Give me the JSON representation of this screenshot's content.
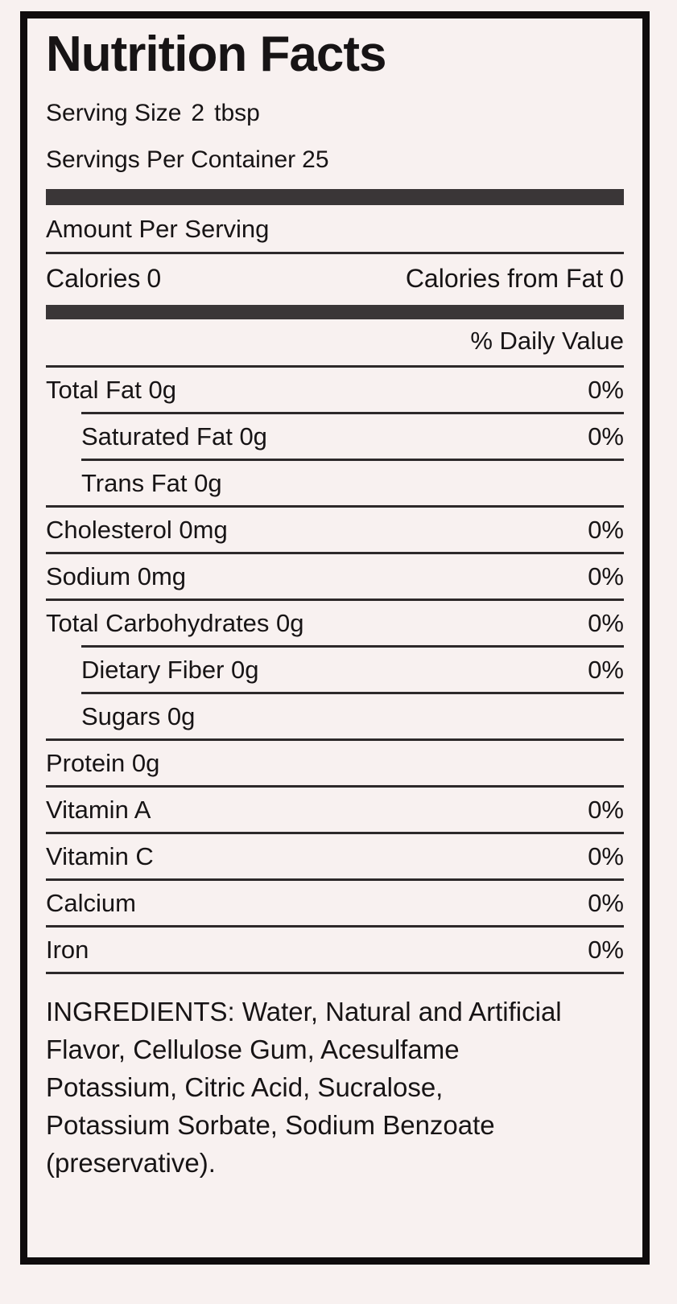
{
  "label": {
    "title": "Nutrition Facts",
    "serving_size_label": "Serving Size",
    "serving_size_value": "2",
    "serving_size_unit": "tbsp",
    "servings_per_container_label": "Servings Per Container",
    "servings_per_container_value": "25",
    "amount_per_serving": "Amount Per Serving",
    "calories_label": "Calories",
    "calories_value": "0",
    "calories_from_fat_label": "Calories from Fat",
    "calories_from_fat_value": "0",
    "daily_value_header": "% Daily Value"
  },
  "nutrients": {
    "rows": [
      {
        "label": "Total Fat",
        "amount": "0g",
        "dv": "0%",
        "indent": false,
        "divider_indent": true
      },
      {
        "label": "Saturated Fat",
        "amount": "0g",
        "dv": "0%",
        "indent": true,
        "divider_indent": true
      },
      {
        "label": "Trans Fat",
        "amount": "0g",
        "dv": "",
        "indent": true,
        "divider_indent": false
      },
      {
        "label": "Cholesterol",
        "amount": "0mg",
        "dv": "0%",
        "indent": false,
        "divider_indent": false
      },
      {
        "label": "Sodium",
        "amount": "0mg",
        "dv": "0%",
        "indent": false,
        "divider_indent": false
      },
      {
        "label": "Total Carbohydrates",
        "amount": "0g",
        "dv": "0%",
        "indent": false,
        "divider_indent": true
      },
      {
        "label": "Dietary Fiber",
        "amount": "0g",
        "dv": "0%",
        "indent": true,
        "divider_indent": true
      },
      {
        "label": "Sugars",
        "amount": "0g",
        "dv": "",
        "indent": true,
        "divider_indent": false
      },
      {
        "label": "Protein",
        "amount": "0g",
        "dv": "",
        "indent": false,
        "divider_indent": false
      },
      {
        "label": "Vitamin A",
        "amount": "",
        "dv": "0%",
        "indent": false,
        "divider_indent": false
      },
      {
        "label": "Vitamin C",
        "amount": "",
        "dv": "0%",
        "indent": false,
        "divider_indent": false
      },
      {
        "label": "Calcium",
        "amount": "",
        "dv": "0%",
        "indent": false,
        "divider_indent": false
      },
      {
        "label": "Iron",
        "amount": "",
        "dv": "0%",
        "indent": false,
        "divider_indent": false
      }
    ]
  },
  "ingredients": "INGREDIENTS: Water, Natural and Artificial Flavor, Cellulose Gum, Acesulfame Potassium, Citric Acid, Sucralose, Potassium Sorbate, Sodium Benzoate (preservative).",
  "colors": {
    "background": "#f8f1f0",
    "text": "#171415",
    "bar": "#3a3637",
    "divider": "#2d292a",
    "border": "#0f0c0d"
  }
}
